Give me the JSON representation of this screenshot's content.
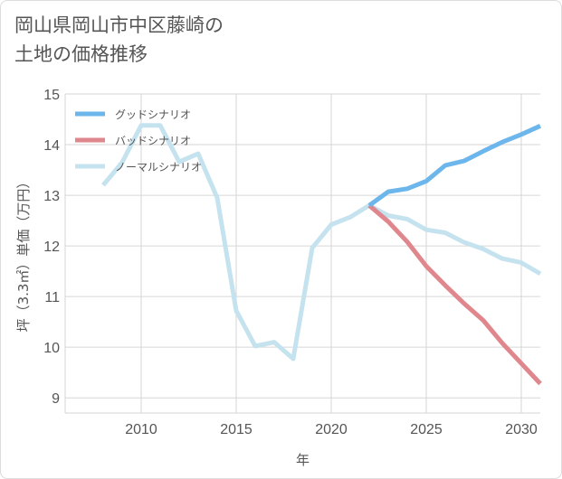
{
  "title_lines": [
    "岡山県岡山市中区藤崎の",
    "土地の価格推移"
  ],
  "colors": {
    "good": "#6cb6ec",
    "bad": "#e0868d",
    "normal": "#c5e2ef",
    "grid": "#d6d6d6",
    "text": "#555555"
  },
  "chart_data": {
    "type": "line",
    "title": "岡山県岡山市中区藤崎の土地の価格推移",
    "xlabel": "年",
    "ylabel": "坪（3.3㎡）単価（万円）",
    "xlim": [
      2006,
      2031
    ],
    "ylim": [
      8.7,
      15
    ],
    "xticks": [
      2010,
      2015,
      2020,
      2025,
      2030
    ],
    "yticks": [
      9,
      10,
      11,
      12,
      13,
      14,
      15
    ],
    "legend_position": "top-left",
    "series": [
      {
        "name": "グッドシナリオ",
        "color": "#6cb6ec",
        "x": [
          2022,
          2023,
          2024,
          2025,
          2026,
          2027,
          2028,
          2029,
          2030,
          2031
        ],
        "y": [
          12.8,
          13.07,
          13.13,
          13.28,
          13.59,
          13.68,
          13.87,
          14.05,
          14.2,
          14.37
        ]
      },
      {
        "name": "バッドシナリオ",
        "color": "#e0868d",
        "x": [
          2022,
          2023,
          2024,
          2025,
          2026,
          2027,
          2028,
          2029,
          2030,
          2031
        ],
        "y": [
          12.8,
          12.48,
          12.08,
          11.6,
          11.22,
          10.86,
          10.53,
          10.08,
          9.68,
          9.28
        ]
      },
      {
        "name": "ノーマルシナリオ",
        "color": "#c5e2ef",
        "x": [
          2008,
          2009,
          2010,
          2011,
          2012,
          2013,
          2014,
          2015,
          2016,
          2017,
          2018,
          2019,
          2020,
          2021,
          2022,
          2023,
          2024,
          2025,
          2026,
          2027,
          2028,
          2029,
          2030,
          2031
        ],
        "y": [
          13.2,
          13.65,
          14.38,
          14.38,
          13.66,
          13.82,
          12.95,
          10.72,
          10.02,
          10.1,
          9.77,
          11.96,
          12.42,
          12.57,
          12.8,
          12.6,
          12.53,
          12.32,
          12.26,
          12.07,
          11.94,
          11.75,
          11.67,
          11.45
        ]
      }
    ]
  }
}
